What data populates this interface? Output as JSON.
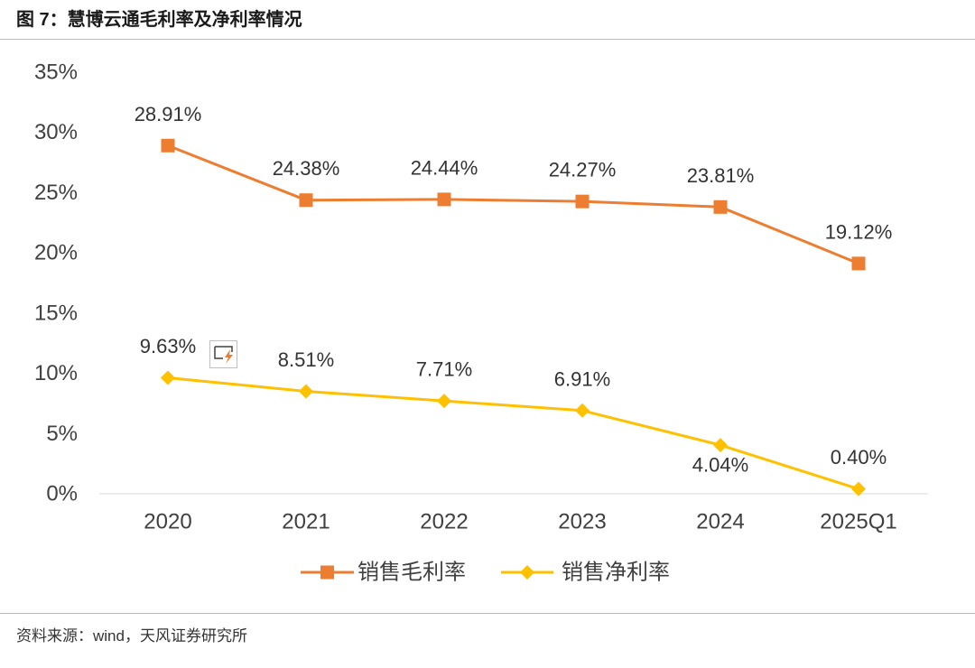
{
  "source": "资料来源：wind，天风证券研究所",
  "colors": {
    "rule": "#F0A878",
    "axis": "#D9D9D9"
  },
  "icons": {
    "chart_tool": "chart-edit-icon"
  },
  "chart_data": {
    "type": "line",
    "title": "图 7：慧博云通毛利率及净利率情况",
    "categories": [
      "2020",
      "2021",
      "2022",
      "2023",
      "2024",
      "2025Q1"
    ],
    "series": [
      {
        "name": "销售毛利率",
        "values": [
          28.91,
          24.38,
          24.44,
          24.27,
          23.81,
          19.12
        ],
        "color": "#ED7D31",
        "marker": "square"
      },
      {
        "name": "销售净利率",
        "values": [
          9.63,
          8.51,
          7.71,
          6.91,
          4.04,
          0.4
        ],
        "color": "#FFC000",
        "marker": "diamond"
      }
    ],
    "value_unit": "%",
    "ylim": [
      0,
      35
    ],
    "yticks": [
      0,
      5,
      10,
      15,
      20,
      25,
      30,
      35
    ],
    "grid": false,
    "data_labels": true,
    "legend": "bottom-center"
  }
}
